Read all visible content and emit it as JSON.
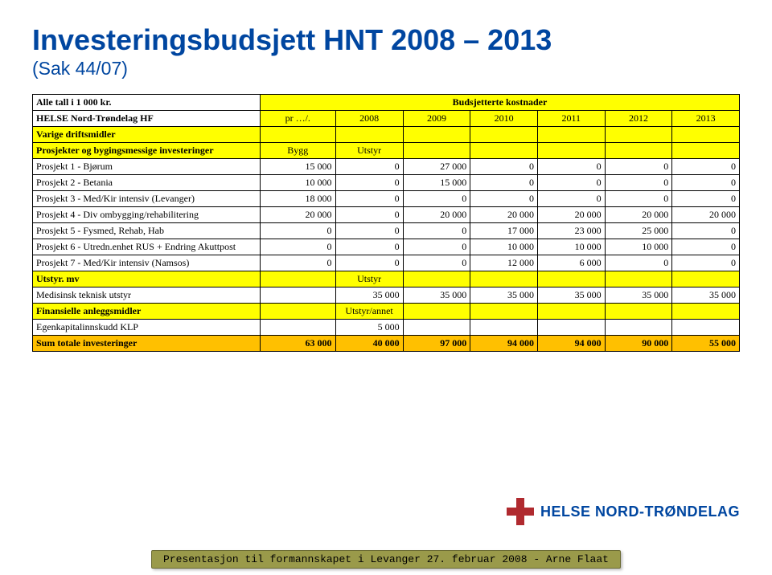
{
  "title": "Investeringsbudsjett HNT 2008 – 2013",
  "subtitle": "(Sak 44/07)",
  "table": {
    "header_row1_left": "Alle tall i 1 000 kr.",
    "header_row1_right": "Budsjetterte kostnader",
    "header_row2": [
      "HELSE Nord-Trøndelag HF",
      "pr …/.",
      "2008",
      "2009",
      "2010",
      "2011",
      "2012",
      "2013"
    ],
    "rows": [
      {
        "type": "section",
        "label": "Varige driftsmidler",
        "cells": [
          "",
          "",
          "",
          "",
          "",
          "",
          ""
        ]
      },
      {
        "type": "section",
        "label": "Prosjekter og bygingsmessige investeringer",
        "cells": [
          "Bygg",
          "Utstyr",
          "",
          "",
          "",
          "",
          ""
        ],
        "col2class": "yellow",
        "col3class": "yellow"
      },
      {
        "type": "data",
        "label": "Prosjekt 1 - Bjørum",
        "cells": [
          "15 000",
          "0",
          "27 000",
          "0",
          "0",
          "0",
          "0"
        ]
      },
      {
        "type": "data",
        "label": "Prosjekt 2 - Betania",
        "cells": [
          "10 000",
          "0",
          "15 000",
          "0",
          "0",
          "0",
          "0"
        ]
      },
      {
        "type": "data",
        "label": "Prosjekt 3 - Med/Kir intensiv (Levanger)",
        "cells": [
          "18 000",
          "0",
          "0",
          "0",
          "0",
          "0",
          "0"
        ]
      },
      {
        "type": "data",
        "label": "Prosjekt 4 - Div ombygging/rehabilitering",
        "cells": [
          "20 000",
          "0",
          "20 000",
          "20 000",
          "20 000",
          "20 000",
          "20 000"
        ]
      },
      {
        "type": "data",
        "label": "Prosjekt 5 - Fysmed, Rehab, Hab",
        "cells": [
          "0",
          "0",
          "0",
          "17 000",
          "23 000",
          "25 000",
          "0"
        ]
      },
      {
        "type": "data",
        "label": "Prosjekt 6 - Utredn.enhet RUS + Endring Akuttpost",
        "cells": [
          "0",
          "0",
          "0",
          "10 000",
          "10 000",
          "10 000",
          "0"
        ]
      },
      {
        "type": "data",
        "label": "Prosjekt 7 - Med/Kir intensiv (Namsos)",
        "cells": [
          "0",
          "0",
          "0",
          "12 000",
          "6 000",
          "0",
          "0"
        ]
      },
      {
        "type": "section",
        "label": "Utstyr. mv",
        "cells": [
          "",
          "Utstyr",
          "",
          "",
          "",
          "",
          ""
        ],
        "col3class": "yellow"
      },
      {
        "type": "data",
        "label": "Medisinsk teknisk utstyr",
        "cells": [
          "",
          "35 000",
          "35 000",
          "35 000",
          "35 000",
          "35 000",
          "35 000"
        ]
      },
      {
        "type": "section",
        "label": "Finansielle anleggsmidler",
        "cells": [
          "",
          "Utstyr/annet",
          "",
          "",
          "",
          "",
          ""
        ],
        "col3class": "yellow"
      },
      {
        "type": "data",
        "label": "Egenkapitalinnskudd KLP",
        "cells": [
          "",
          "5 000",
          "",
          "",
          "",
          "",
          ""
        ]
      },
      {
        "type": "total",
        "label": "Sum totale investeringer",
        "cells": [
          "63 000",
          "40 000",
          "97 000",
          "94 000",
          "94 000",
          "90 000",
          "55 000"
        ]
      }
    ]
  },
  "logo_text": "HELSE NORD-TRØNDELAG",
  "footer": "Presentasjon til formannskapet i Levanger 27. februar 2008 - Arne Flaat",
  "colors": {
    "title": "#0046a0",
    "yellow": "#ffff00",
    "orange": "#ffc000",
    "logo_red": "#b02a2f",
    "footer_bg": "#9a9a4a",
    "footer_border": "#6b6b33"
  }
}
